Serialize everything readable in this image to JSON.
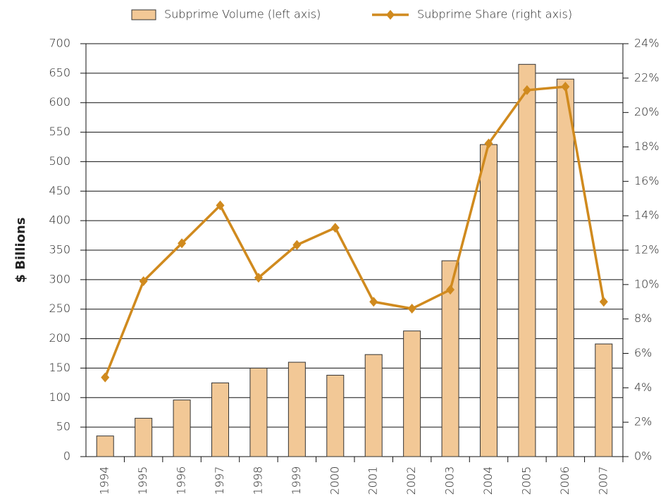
{
  "chart_data": {
    "type": "bar_line",
    "y_axis_title": "$ Billions",
    "categories": [
      "1994",
      "1995",
      "1996",
      "1997",
      "1998",
      "1999",
      "2000",
      "2001",
      "2002",
      "2003",
      "2004",
      "2005",
      "2006",
      "2007"
    ],
    "series": [
      {
        "name": "Subprime Volume (left axis)",
        "type": "bar",
        "axis": "y",
        "color": "#f2c896",
        "values": [
          35,
          65,
          96,
          125,
          150,
          160,
          138,
          173,
          213,
          332,
          529,
          665,
          640,
          191
        ]
      },
      {
        "name": "Subprime Share (right axis)",
        "type": "line",
        "axis": "y2",
        "color": "#d08a1e",
        "values": [
          4.6,
          10.2,
          12.4,
          14.6,
          10.4,
          12.3,
          13.3,
          9.0,
          8.6,
          9.7,
          18.2,
          21.3,
          21.5,
          9.0
        ]
      }
    ],
    "ylim": [
      0,
      700
    ],
    "yticks": [
      0,
      50,
      100,
      150,
      200,
      250,
      300,
      350,
      400,
      450,
      500,
      550,
      600,
      650,
      700
    ],
    "y2lim": [
      0,
      24
    ],
    "y2ticks": [
      {
        "value": 0,
        "label": "0%"
      },
      {
        "value": 2,
        "label": "2%"
      },
      {
        "value": 4,
        "label": "4%"
      },
      {
        "value": 6,
        "label": "6%"
      },
      {
        "value": 8,
        "label": "8%"
      },
      {
        "value": 10,
        "label": "10%"
      },
      {
        "value": 12,
        "label": "12%"
      },
      {
        "value": 14,
        "label": "14%"
      },
      {
        "value": 16,
        "label": "16%"
      },
      {
        "value": 18,
        "label": "18%"
      },
      {
        "value": 20,
        "label": "20%"
      },
      {
        "value": 22,
        "label": "22%"
      },
      {
        "value": 24,
        "label": "24%"
      }
    ],
    "grid": true,
    "legend": "top"
  }
}
